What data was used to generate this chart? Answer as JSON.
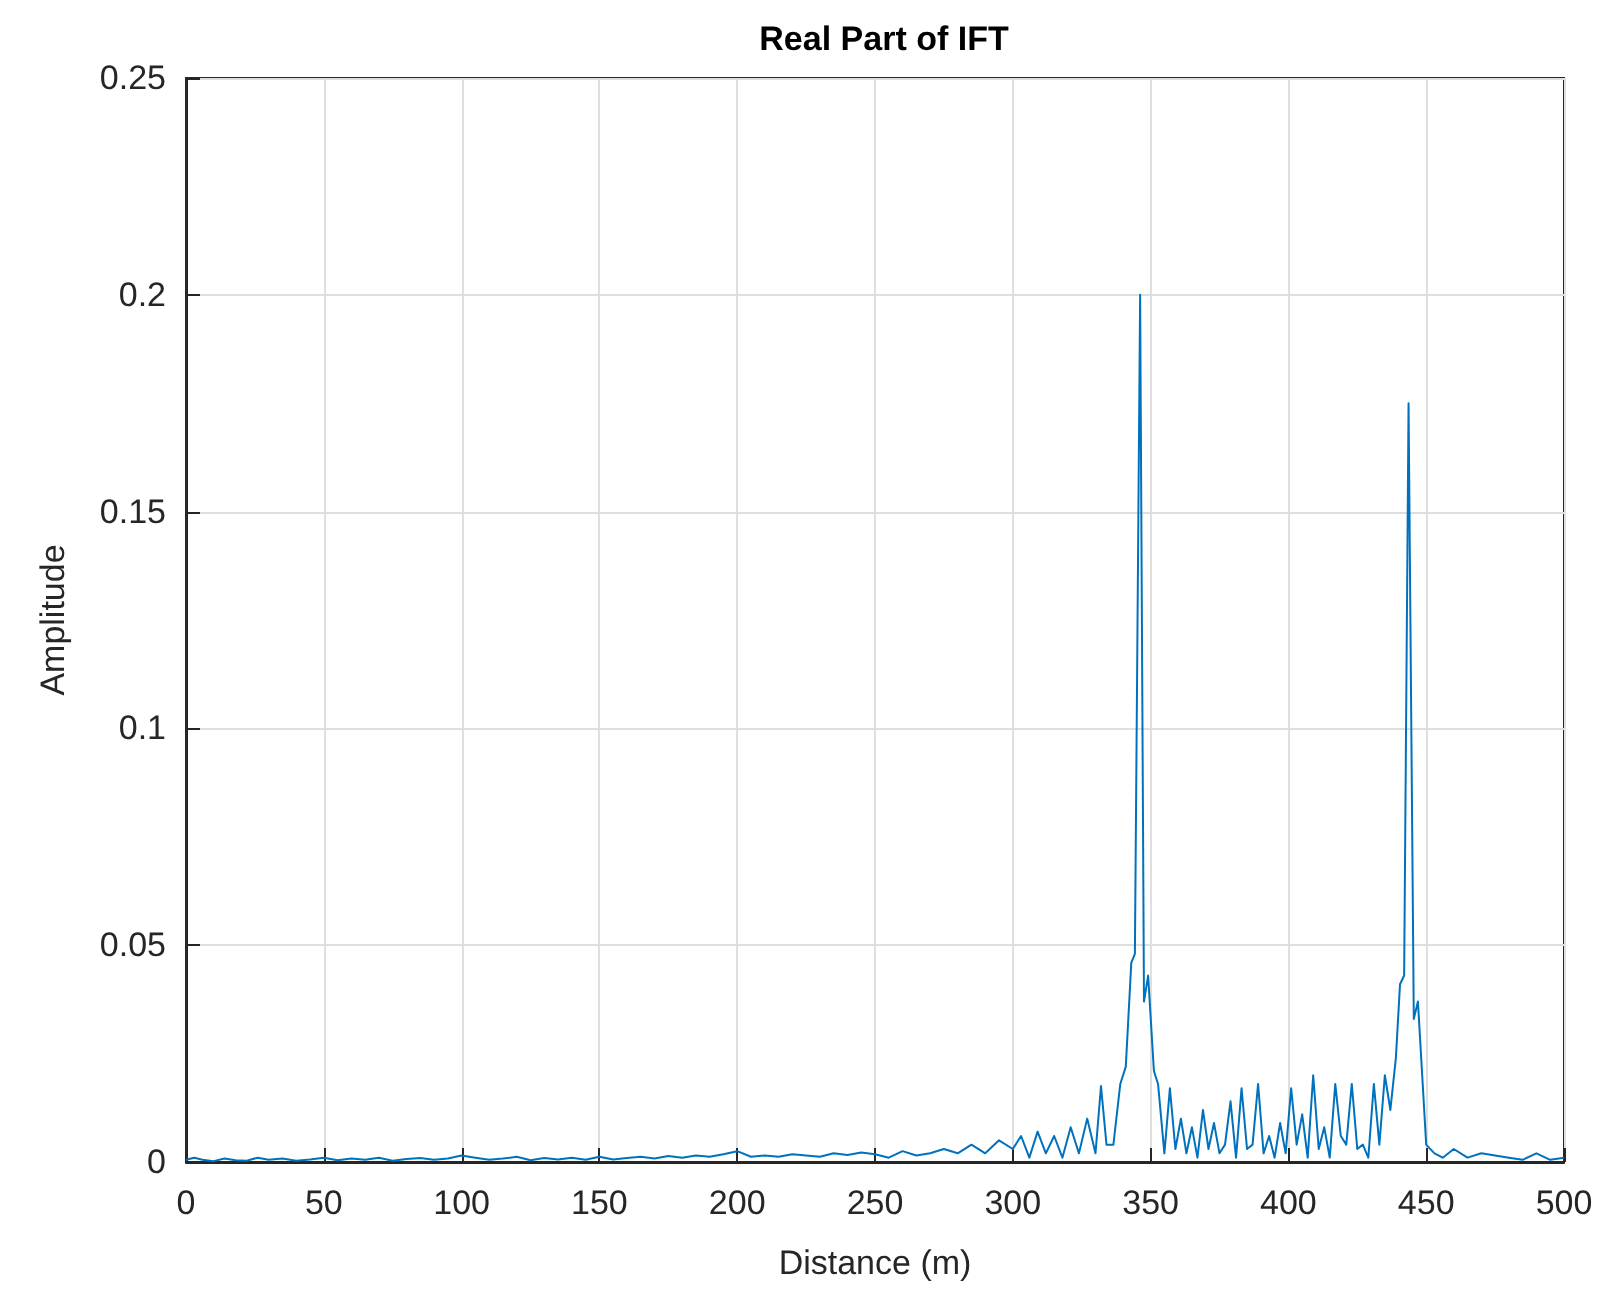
{
  "chart_data": {
    "type": "line",
    "title": "Real Part of IFT",
    "xlabel": "Distance (m)",
    "ylabel": "Amplitude",
    "x": [
      0,
      3,
      6,
      10,
      14,
      18,
      22,
      26,
      30,
      35,
      40,
      45,
      50,
      55,
      60,
      65,
      70,
      75,
      80,
      85,
      90,
      95,
      100,
      105,
      110,
      115,
      120,
      125,
      130,
      135,
      140,
      145,
      150,
      155,
      160,
      165,
      170,
      175,
      180,
      185,
      190,
      195,
      200,
      205,
      210,
      215,
      220,
      225,
      230,
      235,
      240,
      245,
      250,
      255,
      260,
      265,
      270,
      275,
      280,
      285,
      290,
      295,
      300,
      303,
      306,
      309,
      312,
      315,
      318,
      321,
      324,
      327,
      330,
      332,
      334,
      336.5,
      339,
      341,
      343,
      344.3,
      346.2,
      347.6,
      349.1,
      351.2,
      352.7,
      355,
      357,
      359,
      361,
      363,
      365,
      367,
      369,
      371,
      373,
      375,
      377,
      379,
      381,
      383,
      385,
      387,
      389,
      391,
      393,
      395,
      397,
      399,
      401,
      403,
      405,
      407,
      409,
      411,
      413,
      415,
      417,
      419,
      421,
      423,
      425,
      427,
      429,
      431,
      433,
      435,
      437,
      439,
      440.5,
      442,
      443.6,
      445.5,
      447,
      450,
      453,
      456,
      460,
      465,
      470,
      475,
      480,
      485,
      490,
      495,
      500
    ],
    "series": [
      {
        "color": "#0072bd",
        "values": [
          0.0005,
          0.001,
          0.0005,
          0.0002,
          0.0008,
          0.0004,
          0.0003,
          0.001,
          0.0005,
          0.0008,
          0.0003,
          0.0006,
          0.001,
          0.0004,
          0.0008,
          0.0005,
          0.001,
          0.0003,
          0.0007,
          0.0009,
          0.0005,
          0.0008,
          0.0015,
          0.001,
          0.0005,
          0.0008,
          0.0012,
          0.0004,
          0.0009,
          0.0006,
          0.001,
          0.0005,
          0.0012,
          0.0006,
          0.0009,
          0.0012,
          0.0008,
          0.0014,
          0.001,
          0.0015,
          0.0012,
          0.0018,
          0.0025,
          0.0012,
          0.0015,
          0.0012,
          0.0018,
          0.0015,
          0.0012,
          0.002,
          0.0016,
          0.0022,
          0.0018,
          0.001,
          0.0025,
          0.0015,
          0.002,
          0.003,
          0.002,
          0.004,
          0.002,
          0.005,
          0.003,
          0.006,
          0.001,
          0.007,
          0.002,
          0.006,
          0.001,
          0.008,
          0.002,
          0.01,
          0.002,
          0.0175,
          0.004,
          0.004,
          0.018,
          0.022,
          0.046,
          0.048,
          0.2,
          0.037,
          0.043,
          0.021,
          0.018,
          0.002,
          0.017,
          0.003,
          0.01,
          0.002,
          0.008,
          0.001,
          0.012,
          0.003,
          0.009,
          0.002,
          0.004,
          0.014,
          0.001,
          0.017,
          0.003,
          0.004,
          0.018,
          0.002,
          0.006,
          0.001,
          0.009,
          0.002,
          0.017,
          0.004,
          0.011,
          0.001,
          0.02,
          0.003,
          0.008,
          0.001,
          0.018,
          0.006,
          0.004,
          0.018,
          0.003,
          0.004,
          0.001,
          0.018,
          0.004,
          0.02,
          0.012,
          0.024,
          0.041,
          0.043,
          0.175,
          0.033,
          0.037,
          0.004,
          0.002,
          0.001,
          0.003,
          0.001,
          0.002,
          0.0015,
          0.001,
          0.0005,
          0.002,
          0.0005,
          0.001
        ]
      }
    ],
    "xlim": [
      0,
      500
    ],
    "xticks": [
      0,
      50,
      100,
      150,
      200,
      250,
      300,
      350,
      400,
      450,
      500
    ],
    "ylim": [
      0,
      0.25
    ],
    "yticks": [
      0,
      0.05,
      0.1,
      0.15,
      0.2,
      0.25
    ],
    "grid": true,
    "marker": "none",
    "line_style": "solid"
  }
}
